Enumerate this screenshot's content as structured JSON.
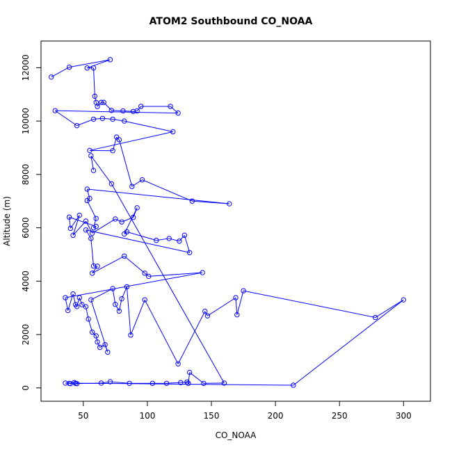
{
  "chart_data": {
    "type": "line",
    "title": "ATOM2 Southbound CO_NOAA",
    "xlabel": "CO_NOAA",
    "ylabel": "Altitude (m)",
    "xlim": [
      17,
      321
    ],
    "ylim": [
      -500,
      13000
    ],
    "x_ticks": [
      50,
      100,
      150,
      200,
      250,
      300
    ],
    "y_ticks": [
      0,
      2000,
      4000,
      6000,
      8000,
      10000,
      12000
    ],
    "line_color": "#0000ff",
    "marker": "open-circle",
    "grid": false,
    "points": [
      [
        25,
        11650
      ],
      [
        39,
        12020
      ],
      [
        71,
        12300
      ],
      [
        53,
        11990
      ],
      [
        58,
        11990
      ],
      [
        59,
        10930
      ],
      [
        60,
        10700
      ],
      [
        61,
        10550
      ],
      [
        64,
        10700
      ],
      [
        66,
        10700
      ],
      [
        72,
        10400
      ],
      [
        81,
        10380
      ],
      [
        89,
        10360
      ],
      [
        92,
        10380
      ],
      [
        95,
        10550
      ],
      [
        118,
        10550
      ],
      [
        124,
        10300
      ],
      [
        28,
        10390
      ],
      [
        45,
        9830
      ],
      [
        58,
        10070
      ],
      [
        65,
        10100
      ],
      [
        73,
        10070
      ],
      [
        82,
        10000
      ],
      [
        120,
        9600
      ],
      [
        55,
        8900
      ],
      [
        73,
        8890
      ],
      [
        76,
        9400
      ],
      [
        78,
        9300
      ],
      [
        88,
        7550
      ],
      [
        96,
        7800
      ],
      [
        135,
        7000
      ],
      [
        164,
        6900
      ],
      [
        53,
        7450
      ],
      [
        55,
        7100
      ],
      [
        53,
        7020
      ],
      [
        60,
        6350
      ],
      [
        58,
        6000
      ],
      [
        60,
        6050
      ],
      [
        39,
        6400
      ],
      [
        40,
        5980
      ],
      [
        47,
        6470
      ],
      [
        42,
        5720
      ],
      [
        52,
        6250
      ],
      [
        57,
        5800
      ],
      [
        75,
        6330
      ],
      [
        80,
        6220
      ],
      [
        89,
        6390
      ],
      [
        92,
        6750
      ],
      [
        82,
        5770
      ],
      [
        84,
        5850
      ],
      [
        107,
        5530
      ],
      [
        117,
        5600
      ],
      [
        125,
        5500
      ],
      [
        129,
        5720
      ],
      [
        133,
        5070
      ],
      [
        52,
        5920
      ],
      [
        56,
        5600
      ],
      [
        58,
        4570
      ],
      [
        61,
        4560
      ],
      [
        57,
        4300
      ],
      [
        82,
        4940
      ],
      [
        98,
        4300
      ],
      [
        101,
        4180
      ],
      [
        143,
        4320
      ],
      [
        36,
        3380
      ],
      [
        38,
        2900
      ],
      [
        42,
        3520
      ],
      [
        44,
        3120
      ],
      [
        45,
        3050
      ],
      [
        47,
        3380
      ],
      [
        49,
        3120
      ],
      [
        52,
        3040
      ],
      [
        54,
        2580
      ],
      [
        57,
        2090
      ],
      [
        60,
        1950
      ],
      [
        61,
        1720
      ],
      [
        63,
        1520
      ],
      [
        67,
        1620
      ],
      [
        69,
        1340
      ],
      [
        56,
        3300
      ],
      [
        73,
        3720
      ],
      [
        75,
        3130
      ],
      [
        78,
        2880
      ],
      [
        80,
        3340
      ],
      [
        84,
        3790
      ],
      [
        87,
        1980
      ],
      [
        98,
        3300
      ],
      [
        124,
        900
      ],
      [
        145,
        2870
      ],
      [
        147,
        2700
      ],
      [
        169,
        3380
      ],
      [
        170,
        2740
      ],
      [
        175,
        3640
      ],
      [
        278,
        2640
      ],
      [
        300,
        3300
      ],
      [
        214,
        100
      ],
      [
        36,
        180
      ],
      [
        39,
        170
      ],
      [
        40,
        160
      ],
      [
        43,
        200
      ],
      [
        44,
        170
      ],
      [
        45,
        160
      ],
      [
        64,
        180
      ],
      [
        71,
        230
      ],
      [
        86,
        170
      ],
      [
        104,
        170
      ],
      [
        115,
        170
      ],
      [
        126,
        200
      ],
      [
        131,
        220
      ],
      [
        132,
        170
      ],
      [
        133,
        580
      ],
      [
        144,
        170
      ],
      [
        160,
        180
      ],
      [
        72,
        7650
      ],
      [
        56,
        8700
      ],
      [
        58,
        8150
      ]
    ]
  }
}
